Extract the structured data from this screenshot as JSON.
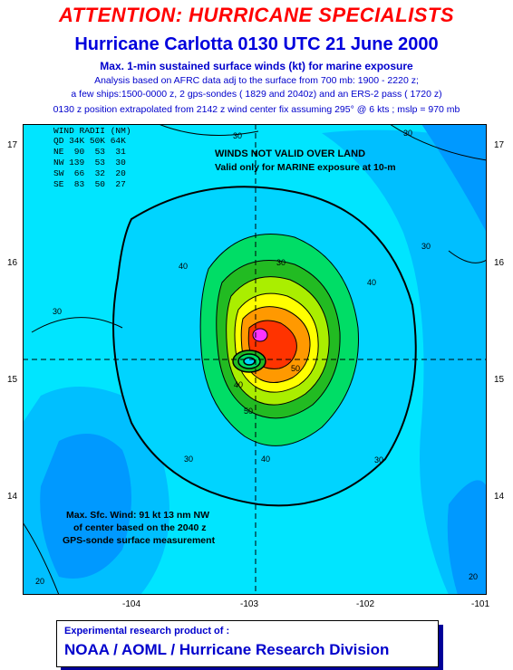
{
  "header": {
    "attention": "ATTENTION: HURRICANE SPECIALISTS",
    "title": "Hurricane Carlotta  0130 UTC 21 June 2000",
    "subtitle": "Max. 1-min sustained surface winds (kt) for marine exposure",
    "notes": [
      "Analysis based on AFRC data adj to the surface from 700 mb:  1900 - 2220 z;",
      "a few ships:1500-0000 z, 2 gps-sondes ( 1829 and 2040z) and an ERS-2 pass ( 1720 z)",
      "0130 z position extrapolated from  2142 z wind center fix assuming 295° @ 6 kts ; mslp = 970 mb"
    ]
  },
  "map": {
    "lat_ticks": [
      "17",
      "16",
      "15",
      "14"
    ],
    "lon_ticks": [
      "-104",
      "-103",
      "-102",
      "-101"
    ],
    "wind_radii": {
      "header": [
        "WIND RADII (NM)",
        "QD 34K 50K 64K"
      ],
      "rows": [
        "NE  90  53  31",
        "NW 139  53  30",
        "SW  66  32  20",
        "SE  83  50  27"
      ]
    },
    "warning": "WINDS NOT VALID OVER LAND",
    "validity": "Valid only for MARINE exposure at 10-m",
    "max_wind": [
      "Max. Sfc. Wind: 91 kt 13 nm NW",
      "of center based on the 2040 z",
      "GPS-sonde surface measurement"
    ],
    "contour_labels": [
      "30",
      "30",
      "40",
      "30",
      "40",
      "50",
      "30",
      "40",
      "50",
      "30",
      "40",
      "30",
      "20",
      "20",
      "30"
    ],
    "colors": {
      "ocean_light": "#00e5ff",
      "ocean_mid": "#00bfff",
      "ocean_deep": "#0099ff",
      "band_40": "#00dd66",
      "band_50": "#22bb22",
      "band_60": "#aaee00",
      "band_70": "#ffff00",
      "band_80": "#ff9900",
      "band_90": "#ff3300",
      "center": "#ff33ff"
    }
  },
  "footer": {
    "line1": "Experimental research product of :",
    "line2": "NOAA / AOML / Hurricane Research Division"
  }
}
